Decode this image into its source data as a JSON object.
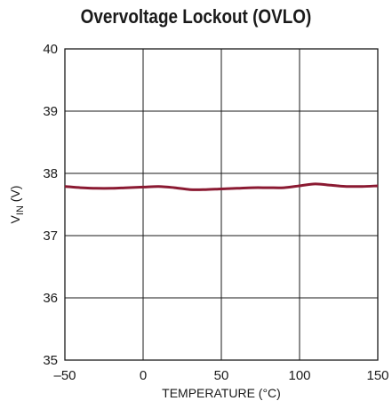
{
  "chart_data": {
    "type": "line",
    "title": "Overvoltage Lockout (OVLO)",
    "xlabel": "TEMPERATURE (°C)",
    "ylabel_main": "V",
    "ylabel_sub": "IN",
    "ylabel_suffix": " (V)",
    "xlim": [
      -50,
      150
    ],
    "ylim": [
      35,
      40
    ],
    "xticks": [
      -50,
      0,
      50,
      100,
      150
    ],
    "xtick_labels": [
      "–50",
      "0",
      "50",
      "100",
      "150"
    ],
    "yticks": [
      35,
      36,
      37,
      38,
      39,
      40
    ],
    "ytick_labels": [
      "35",
      "36",
      "37",
      "38",
      "39",
      "40"
    ],
    "grid": true,
    "series": [
      {
        "color": "#8b1a32",
        "x": [
          -50,
          -40,
          -30,
          -20,
          -10,
          0,
          10,
          20,
          30,
          40,
          50,
          60,
          70,
          80,
          90,
          100,
          110,
          120,
          130,
          140,
          150
        ],
        "y": [
          37.79,
          37.77,
          37.76,
          37.76,
          37.77,
          37.78,
          37.79,
          37.77,
          37.74,
          37.74,
          37.75,
          37.76,
          37.77,
          37.77,
          37.77,
          37.8,
          37.83,
          37.81,
          37.79,
          37.79,
          37.8
        ]
      }
    ]
  }
}
